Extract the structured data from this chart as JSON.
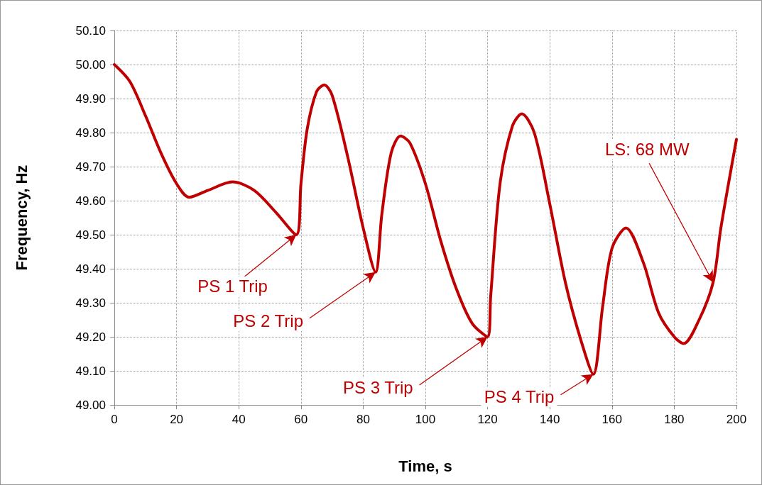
{
  "chart_data": {
    "type": "line",
    "xlabel": "Time, s",
    "ylabel": "Frequency, Hz",
    "x": [
      0,
      5,
      10,
      15,
      20,
      24,
      30,
      38,
      45,
      52,
      58.5,
      60,
      62,
      65,
      67.5,
      70,
      75,
      80,
      84,
      86,
      89,
      92,
      95,
      100,
      105,
      110,
      115,
      120,
      121,
      124,
      128,
      131,
      135,
      140,
      145,
      150,
      154,
      157,
      160,
      164.5,
      170,
      175,
      180,
      183,
      188,
      192.5,
      195,
      200
    ],
    "series": [
      {
        "color": "#c00000",
        "values": [
          50.0,
          49.95,
          49.85,
          49.74,
          49.65,
          49.61,
          49.63,
          49.655,
          49.63,
          49.565,
          49.5,
          49.65,
          49.81,
          49.92,
          49.94,
          49.91,
          49.73,
          49.52,
          49.39,
          49.56,
          49.74,
          49.79,
          49.77,
          49.65,
          49.48,
          49.34,
          49.24,
          49.2,
          49.32,
          49.65,
          49.82,
          49.855,
          49.8,
          49.59,
          49.36,
          49.19,
          49.09,
          49.29,
          49.46,
          49.52,
          49.42,
          49.27,
          49.2,
          49.18,
          49.25,
          49.36,
          49.52,
          49.78
        ]
      }
    ],
    "xlim": [
      0,
      200
    ],
    "xticks": [
      0,
      20,
      40,
      60,
      80,
      100,
      120,
      140,
      160,
      180,
      200
    ],
    "ylim": [
      49.0,
      50.1
    ],
    "yticks": [
      {
        "value": 49.0,
        "label": "49.00"
      },
      {
        "value": 49.1,
        "label": "49.10"
      },
      {
        "value": 49.2,
        "label": "49.20"
      },
      {
        "value": 49.3,
        "label": "49.30"
      },
      {
        "value": 49.4,
        "label": "49.40"
      },
      {
        "value": 49.5,
        "label": "49.50"
      },
      {
        "value": 49.6,
        "label": "49.60"
      },
      {
        "value": 49.7,
        "label": "49.70"
      },
      {
        "value": 49.8,
        "label": "49.80"
      },
      {
        "value": 49.9,
        "label": "49.90"
      },
      {
        "value": 50.0,
        "label": "50.00"
      },
      {
        "value": 50.1,
        "label": "50.10"
      }
    ],
    "grid": true,
    "marker": "none",
    "line_style": "solid",
    "annotations": [
      {
        "text": "PS 1 Trip",
        "x": 58.5,
        "y": 49.5
      },
      {
        "text": "PS 2 Trip",
        "x": 84,
        "y": 49.39
      },
      {
        "text": "PS 3 Trip",
        "x": 120,
        "y": 49.2
      },
      {
        "text": "PS 4 Trip",
        "x": 154,
        "y": 49.09
      },
      {
        "text": "LS: 68 MW",
        "x": 192.5,
        "y": 49.36
      }
    ]
  }
}
